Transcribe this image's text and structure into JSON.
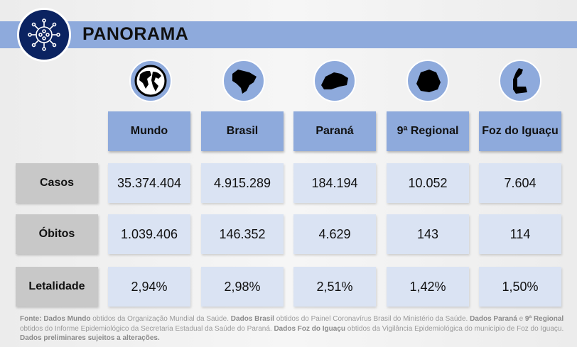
{
  "header": {
    "title": "PANORAMA"
  },
  "columns": [
    "Mundo",
    "Brasil",
    "Paraná",
    "9ª Regional",
    "Foz do Iguaçu"
  ],
  "rows": [
    {
      "label": "Casos",
      "values": [
        "35.374.404",
        "4.915.289",
        "184.194",
        "10.052",
        "7.604"
      ]
    },
    {
      "label": "Óbitos",
      "values": [
        "1.039.406",
        "146.352",
        "4.629",
        "143",
        "114"
      ]
    },
    {
      "label": "Letalidade",
      "values": [
        "2,94%",
        "2,98%",
        "2,51%",
        "1,42%",
        "1,50%"
      ]
    }
  ],
  "footer": {
    "p1b": "Fonte: Dados Mundo",
    "p1": " obtidos da Organização Mundial da Saúde. ",
    "p2b": "Dados Brasil",
    "p2": " obtidos do Painel Coronavírus Brasil do Ministério da Saúde. ",
    "p3b": "Dados Paraná",
    "p3": " e ",
    "p4b": "9ª Regional",
    "p4": " obtidos do Informe Epidemiológico da Secretaria Estadual da Saúde do Paraná.  ",
    "p5b": "Dados Foz do Iguaçu",
    "p5": " obtidos da Vigilância Epidemiológica do município de Foz do Iguaçu.  ",
    "p6b": "Dados preliminares sujeitos a alterações."
  }
}
